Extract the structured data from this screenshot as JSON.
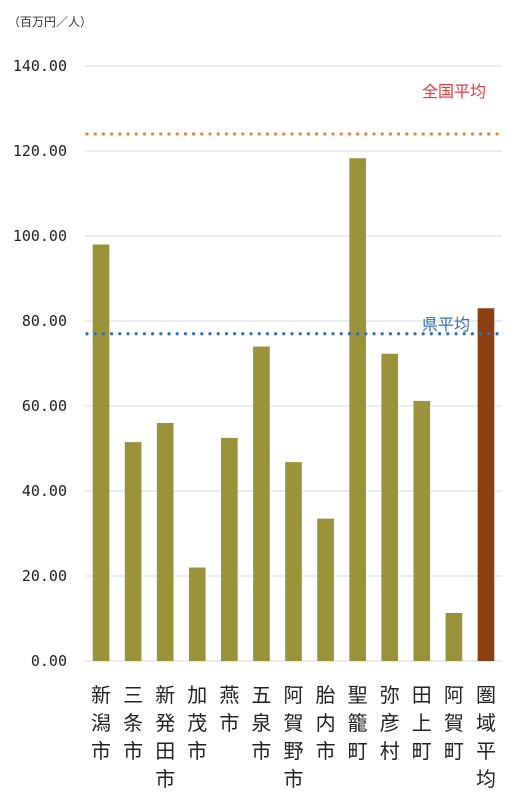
{
  "chart_data": {
    "type": "bar",
    "unit_label": "（百万円／人）",
    "y_tick_labels": [
      "0.00",
      "20.00",
      "40.00",
      "60.00",
      "80.00",
      "100.00",
      "120.00",
      "140.00"
    ],
    "ylim": [
      0,
      140
    ],
    "grid": "horizontal",
    "categories": [
      "新潟市",
      "三条市",
      "新発田市",
      "加茂市",
      "燕市",
      "五泉市",
      "阿賀野市",
      "胎内市",
      "聖籠町",
      "弥彦村",
      "田上町",
      "阿賀町",
      "圏域平均"
    ],
    "values": [
      98.0,
      51.5,
      56.0,
      22.0,
      52.5,
      74.0,
      46.8,
      33.5,
      118.3,
      72.3,
      61.2,
      11.3,
      83.0
    ],
    "bar_colors": [
      "#9a933c",
      "#9a933c",
      "#9a933c",
      "#9a933c",
      "#9a933c",
      "#9a933c",
      "#9a933c",
      "#9a933c",
      "#9a933c",
      "#9a933c",
      "#9a933c",
      "#9a933c",
      "#8b3e12"
    ],
    "reference_lines": [
      {
        "label": "全国平均",
        "value": 124.0,
        "color": "#e8823b",
        "label_color": "#e8353a"
      },
      {
        "label": "県平均",
        "value": 77.0,
        "color": "#2f6fb0",
        "label_color": "#2f6fb0"
      }
    ]
  }
}
